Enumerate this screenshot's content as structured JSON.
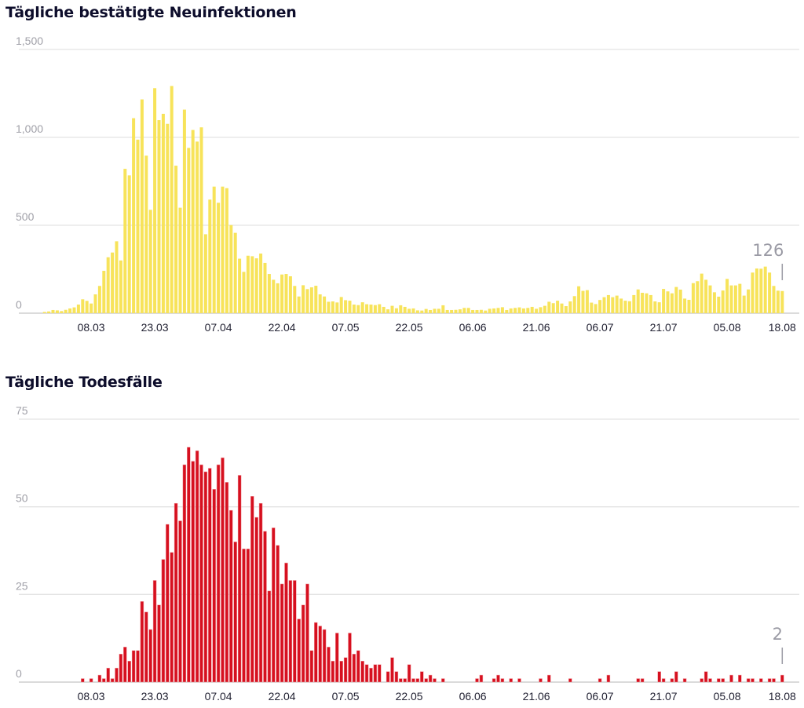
{
  "chart_data": [
    {
      "type": "bar",
      "title": "Tägliche bestätigte Neuinfektionen",
      "xlabel": "",
      "ylabel": "",
      "start_date": "26.02",
      "end_date": "18.08",
      "ylim": [
        0,
        1500
      ],
      "yticks": [
        0,
        500,
        1000,
        1500
      ],
      "ytick_labels": [
        "0",
        "500",
        "1,000",
        "1,500"
      ],
      "xtick_labels": [
        "08.03",
        "23.03",
        "07.04",
        "22.04",
        "07.05",
        "22.05",
        "06.06",
        "21.06",
        "06.07",
        "21.07",
        "05.08",
        "18.08"
      ],
      "grid": true,
      "color": "#f7e35a",
      "annotation": "126",
      "values": [
        7,
        10,
        18,
        16,
        12,
        19,
        27,
        33,
        49,
        79,
        70,
        55,
        107,
        155,
        241,
        318,
        345,
        409,
        300,
        821,
        784,
        1109,
        987,
        1216,
        896,
        588,
        1280,
        1098,
        1134,
        1077,
        1292,
        839,
        600,
        1158,
        940,
        1042,
        976,
        1057,
        449,
        646,
        720,
        628,
        720,
        711,
        501,
        457,
        310,
        235,
        327,
        324,
        312,
        339,
        286,
        223,
        190,
        170,
        220,
        223,
        210,
        155,
        95,
        159,
        137,
        147,
        156,
        107,
        95,
        65,
        67,
        61,
        92,
        74,
        71,
        49,
        46,
        62,
        51,
        49,
        46,
        51,
        36,
        22,
        42,
        28,
        45,
        36,
        25,
        27,
        16,
        15,
        24,
        18,
        25,
        25,
        45,
        18,
        18,
        19,
        22,
        30,
        30,
        18,
        18,
        19,
        15,
        25,
        27,
        30,
        34,
        18,
        27,
        30,
        33,
        27,
        30,
        36,
        25,
        34,
        42,
        65,
        57,
        71,
        55,
        40,
        67,
        97,
        153,
        127,
        131,
        60,
        52,
        75,
        91,
        103,
        91,
        100,
        83,
        71,
        68,
        103,
        135,
        116,
        113,
        103,
        67,
        62,
        138,
        124,
        113,
        149,
        134,
        83,
        76,
        171,
        182,
        225,
        190,
        158,
        119,
        94,
        129,
        195,
        158,
        158,
        167,
        100,
        135,
        231,
        254,
        253,
        265,
        231,
        155,
        128,
        126
      ]
    },
    {
      "type": "bar",
      "title": "Tägliche Todesfälle",
      "xlabel": "",
      "ylabel": "",
      "start_date": "26.02",
      "end_date": "18.08",
      "ylim": [
        0,
        75
      ],
      "yticks": [
        0,
        25,
        50,
        75
      ],
      "ytick_labels": [
        "0",
        "25",
        "50",
        "75"
      ],
      "xtick_labels": [
        "08.03",
        "23.03",
        "07.04",
        "22.04",
        "07.05",
        "22.05",
        "06.06",
        "21.06",
        "06.07",
        "21.07",
        "05.08",
        "18.08"
      ],
      "grid": true,
      "color": "#d6101f",
      "annotation": "2",
      "values": [
        0,
        0,
        0,
        0,
        0,
        0,
        0,
        0,
        0,
        1,
        0,
        1,
        0,
        2,
        1,
        4,
        1,
        4,
        8,
        10,
        6,
        9,
        9,
        23,
        20,
        15,
        29,
        22,
        35,
        45,
        37,
        51,
        46,
        62,
        67,
        63,
        66,
        62,
        60,
        61,
        55,
        62,
        64,
        57,
        49,
        40,
        59,
        38,
        38,
        53,
        47,
        51,
        43,
        26,
        44,
        39,
        28,
        34,
        29,
        29,
        18,
        22,
        28,
        9,
        17,
        16,
        15,
        10,
        6,
        14,
        6,
        7,
        14,
        8,
        9,
        6,
        5,
        4,
        5,
        5,
        0,
        3,
        7,
        3,
        1,
        1,
        5,
        1,
        1,
        3,
        1,
        2,
        1,
        0,
        1,
        0,
        0,
        0,
        0,
        0,
        0,
        0,
        1,
        2,
        0,
        0,
        1,
        2,
        1,
        0,
        1,
        0,
        1,
        0,
        0,
        0,
        0,
        1,
        0,
        2,
        0,
        0,
        0,
        0,
        1,
        0,
        0,
        0,
        0,
        0,
        0,
        1,
        0,
        2,
        0,
        0,
        0,
        0,
        0,
        0,
        1,
        1,
        0,
        0,
        0,
        3,
        1,
        0,
        1,
        3,
        0,
        1,
        0,
        0,
        0,
        1,
        3,
        1,
        0,
        1,
        1,
        0,
        2,
        0,
        2,
        0,
        1,
        1,
        0,
        1,
        0,
        1,
        1,
        0,
        2
      ]
    }
  ]
}
